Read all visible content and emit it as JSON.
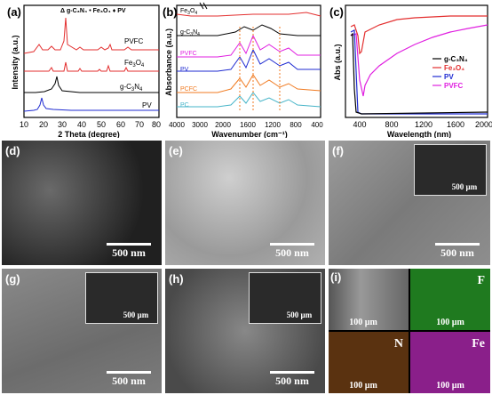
{
  "panels": {
    "a": {
      "label": "(a)",
      "xlabel": "2 Theta (degree)",
      "ylabel": "Intensity (a.u.)",
      "xticks": [
        "10",
        "20",
        "30",
        "40",
        "50",
        "60",
        "70",
        "80"
      ],
      "legend": "Δ g-C₃N₄ • Fe₃O₄ ♦ PV",
      "series": [
        {
          "name": "PVFC",
          "color": "#e32f2f"
        },
        {
          "name": "Fe3O4",
          "color": "#e32f2f"
        },
        {
          "name": "g-C3N4",
          "color": "#000000"
        },
        {
          "name": "PV",
          "color": "#1f2bd1"
        }
      ]
    },
    "b": {
      "label": "(b)",
      "xlabel": "Wavenumber (cm⁻¹)",
      "ylabel": "Absorbance (a.u.)",
      "xticks": [
        "4000",
        "3000",
        "2000",
        "1600",
        "1200",
        "800",
        "400"
      ],
      "series": [
        {
          "name": "Fe3O4",
          "color": "#e32f2f"
        },
        {
          "name": "g-C3N4",
          "color": "#000000"
        },
        {
          "name": "PVFC",
          "color": "#e020e0"
        },
        {
          "name": "PV",
          "color": "#1f2bd1"
        },
        {
          "name": "PCFC",
          "color": "#f07a20"
        },
        {
          "name": "PC",
          "color": "#46b4c8"
        }
      ]
    },
    "c": {
      "label": "(c)",
      "xlabel": "Wavelength (nm)",
      "ylabel": "Abs (a.u.)",
      "xticks": [
        "400",
        "800",
        "1200",
        "1600",
        "2000"
      ],
      "series": [
        {
          "name": "g-C₃N₄",
          "color": "#000000"
        },
        {
          "name": "Fe₃O₄",
          "color": "#e32f2f"
        },
        {
          "name": "PV",
          "color": "#1f2bd1"
        },
        {
          "name": "PVFC",
          "color": "#e020e0"
        }
      ]
    },
    "d": {
      "label": "(d)",
      "scale": "500 nm"
    },
    "e": {
      "label": "(e)",
      "scale": "500 nm"
    },
    "f": {
      "label": "(f)",
      "scale": "500 nm",
      "inset_scale": "500 µm"
    },
    "g": {
      "label": "(g)",
      "scale": "500 nm",
      "inset_scale": "500 µm"
    },
    "h": {
      "label": "(h)",
      "scale": "500 nm",
      "inset_scale": "500 µm"
    },
    "i": {
      "label": "(i)",
      "tiles": [
        {
          "element": "",
          "scale": "100 µm"
        },
        {
          "element": "F",
          "scale": "100 µm"
        },
        {
          "element": "N",
          "scale": "100 µm"
        },
        {
          "element": "Fe",
          "scale": "100 µm"
        }
      ]
    }
  }
}
